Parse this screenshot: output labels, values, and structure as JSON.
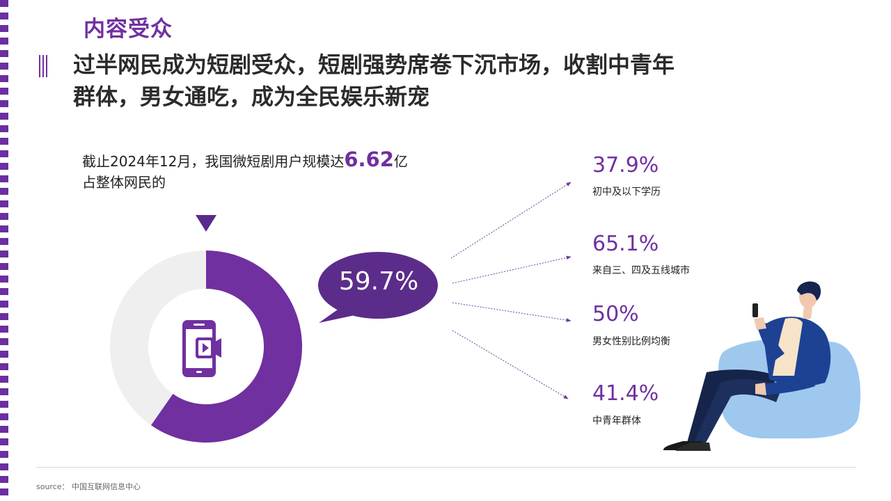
{
  "section_title": "内容受众",
  "headline": {
    "line1": "过半网民成为短剧受众，短剧强势席卷下沉市场，收割中青年",
    "line2": "群体，男女通吃，成为全民娱乐新宠"
  },
  "stat": {
    "prefix": "截止2024年12月，我国微短剧用户规模达",
    "value": "6.62",
    "suffix": "亿",
    "line2": "占整体网民的"
  },
  "donut": {
    "share_value": "59.7%",
    "share_fraction": 0.597,
    "colors": {
      "fill": "#7030a0",
      "rest": "#f0eff0"
    },
    "center_icon": "mobile-video-icon"
  },
  "audience_stats": [
    {
      "value": "37.9%",
      "label": "初中及以下学历"
    },
    {
      "value": "65.1%",
      "label": "来自三、四及五线城市"
    },
    {
      "value": "50%",
      "label": "男女性别比例均衡"
    },
    {
      "value": "41.4%",
      "label": "中青年群体"
    }
  ],
  "illustration": "man-on-beanbag-with-phone",
  "footer": {
    "source": "source： 中国互联网信息中心"
  },
  "colors": {
    "accent": "#7030a0",
    "bubble": "#5b2c8a"
  }
}
